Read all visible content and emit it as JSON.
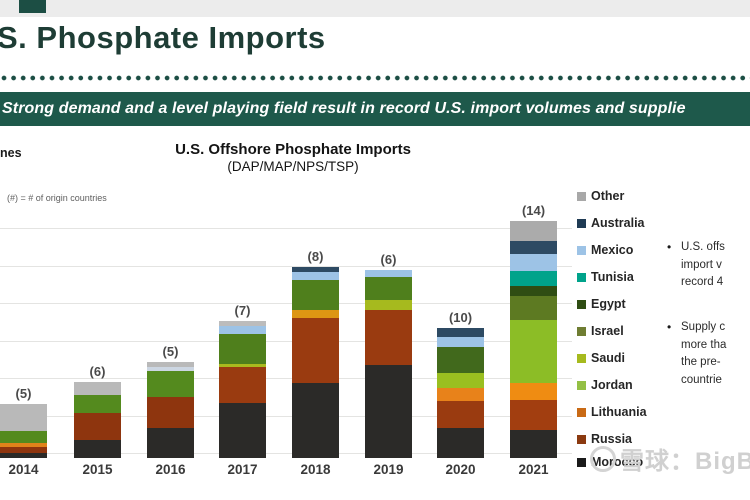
{
  "header": {
    "title": "S. Phosphate Imports",
    "banner_text": "Strong demand and a level playing field result in record U.S. import volumes and supplie",
    "colors": {
      "banner_bg": "#1e594b",
      "banner_text": "#ffffff",
      "title_text": "#1e3d35",
      "accent_green": "#1c4e44",
      "top_band": "#ececec"
    }
  },
  "chart": {
    "ylabel_fragment": "nes",
    "title": "U.S. Offshore Phosphate Imports",
    "subtitle": "(DAP/MAP/NPS/TSP)",
    "note": "(#) = # of origin countries"
  },
  "chart_data": {
    "type": "bar",
    "stacked": true,
    "title": "U.S. Offshore Phosphate Imports",
    "subtitle": "(DAP/MAP/NPS/TSP)",
    "categories": [
      "2014",
      "2015",
      "2016",
      "2017",
      "2018",
      "2019",
      "2020",
      "2021"
    ],
    "origin_count_labels": [
      "(5)",
      "(6)",
      "(5)",
      "(7)",
      "(8)",
      "(6)",
      "(10)",
      "(14)"
    ],
    "ylabel": "Tonnes (axis cropped; only 'nes' visible)",
    "values_unit": "thousand tonnes, estimated (y-axis tick labels cropped; one gridline ~ 500)",
    "ylim": [
      0,
      3400
    ],
    "grid": true,
    "legend_position": "right",
    "years": [
      {
        "year": "2014",
        "label": "(5)",
        "segments": [
          {
            "country": "Morocco",
            "kt": 70,
            "color": "#2b2a28"
          },
          {
            "country": "Russia",
            "kt": 80,
            "color": "#8e350e"
          },
          {
            "country": "Lithuania",
            "kt": 55,
            "color": "#e0831a"
          },
          {
            "country": "Jordan",
            "kt": 160,
            "color": "#548a1e"
          },
          {
            "country": "Other",
            "kt": 360,
            "color": "#b9b9b9"
          }
        ]
      },
      {
        "year": "2015",
        "label": "(6)",
        "segments": [
          {
            "country": "Morocco",
            "kt": 240,
            "color": "#2b2a28"
          },
          {
            "country": "Russia",
            "kt": 360,
            "color": "#8e350e"
          },
          {
            "country": "Jordan",
            "kt": 245,
            "color": "#548a1e"
          },
          {
            "country": "Other",
            "kt": 170,
            "color": "#b9b9b9"
          }
        ]
      },
      {
        "year": "2016",
        "label": "(5)",
        "segments": [
          {
            "country": "Morocco",
            "kt": 400,
            "color": "#2b2a28"
          },
          {
            "country": "Russia",
            "kt": 415,
            "color": "#8e350e"
          },
          {
            "country": "Jordan",
            "kt": 345,
            "color": "#548a1e"
          },
          {
            "country": "Mexico",
            "kt": 55,
            "color": "#ccd6e2"
          },
          {
            "country": "Other",
            "kt": 65,
            "color": "#b9b9b9"
          }
        ]
      },
      {
        "year": "2017",
        "label": "(7)",
        "segments": [
          {
            "country": "Morocco",
            "kt": 735,
            "color": "#2b2a28"
          },
          {
            "country": "Russia",
            "kt": 480,
            "color": "#9a3b10"
          },
          {
            "country": "Saudi",
            "kt": 40,
            "color": "#aab91e"
          },
          {
            "country": "Jordan",
            "kt": 400,
            "color": "#4f7f1c"
          },
          {
            "country": "Mexico",
            "kt": 110,
            "color": "#9dc3e6"
          },
          {
            "country": "Other",
            "kt": 65,
            "color": "#bcbcbc"
          }
        ]
      },
      {
        "year": "2018",
        "label": "(8)",
        "segments": [
          {
            "country": "Morocco",
            "kt": 1000,
            "color": "#2b2a28"
          },
          {
            "country": "Russia",
            "kt": 865,
            "color": "#9a3b10"
          },
          {
            "country": "Lithuania",
            "kt": 110,
            "color": "#dd9613"
          },
          {
            "country": "Jordan",
            "kt": 400,
            "color": "#4f7f1c"
          },
          {
            "country": "Mexico",
            "kt": 110,
            "color": "#9dc3e6"
          },
          {
            "country": "Australia",
            "kt": 65,
            "color": "#2d4a63"
          }
        ]
      },
      {
        "year": "2019",
        "label": "(6)",
        "segments": [
          {
            "country": "Morocco",
            "kt": 1240,
            "color": "#2b2a28"
          },
          {
            "country": "Russia",
            "kt": 735,
            "color": "#9a3b10"
          },
          {
            "country": "Saudi",
            "kt": 135,
            "color": "#a6ba1e"
          },
          {
            "country": "Jordan",
            "kt": 305,
            "color": "#4f7f1c"
          },
          {
            "country": "Mexico",
            "kt": 95,
            "color": "#9dc3e6"
          }
        ]
      },
      {
        "year": "2020",
        "label": "(10)",
        "segments": [
          {
            "country": "Morocco",
            "kt": 400,
            "color": "#2b2a28"
          },
          {
            "country": "Russia",
            "kt": 360,
            "color": "#9a3b10"
          },
          {
            "country": "Lithuania",
            "kt": 175,
            "color": "#e8821a"
          },
          {
            "country": "Saudi",
            "kt": 200,
            "color": "#9abf20"
          },
          {
            "country": "Israel",
            "kt": 345,
            "color": "#41691c"
          },
          {
            "country": "Mexico",
            "kt": 135,
            "color": "#9dc3e6"
          },
          {
            "country": "Australia",
            "kt": 120,
            "color": "#2d4a63"
          }
        ]
      },
      {
        "year": "2021",
        "label": "(14)",
        "segments": [
          {
            "country": "Morocco",
            "kt": 375,
            "color": "#2b2a28"
          },
          {
            "country": "Russia",
            "kt": 400,
            "color": "#a23e10"
          },
          {
            "country": "Lithuania",
            "kt": 225,
            "color": "#ef8c12"
          },
          {
            "country": "Jordan",
            "kt": 840,
            "color": "#8cbd26"
          },
          {
            "country": "Israel",
            "kt": 320,
            "color": "#5d7a22"
          },
          {
            "country": "Egypt",
            "kt": 135,
            "color": "#2f4d13"
          },
          {
            "country": "Tunisia",
            "kt": 200,
            "color": "#00a38b"
          },
          {
            "country": "Mexico",
            "kt": 225,
            "color": "#9dc3e6"
          },
          {
            "country": "Australia",
            "kt": 175,
            "color": "#2d4a63"
          },
          {
            "country": "Other",
            "kt": 265,
            "color": "#ababab"
          }
        ]
      }
    ]
  },
  "legend": {
    "items": [
      {
        "label": "Other",
        "color": "#a8a8a8"
      },
      {
        "label": "Australia",
        "color": "#1f3b54"
      },
      {
        "label": "Mexico",
        "color": "#9dc3e6"
      },
      {
        "label": "Tunisia",
        "color": "#00a38b"
      },
      {
        "label": "Egypt",
        "color": "#2f4d13"
      },
      {
        "label": "Israel",
        "color": "#6f7d32"
      },
      {
        "label": "Saudi",
        "color": "#a6ba1e"
      },
      {
        "label": "Jordan",
        "color": "#94c045"
      },
      {
        "label": "Lithuania",
        "color": "#c96a15"
      },
      {
        "label": "Russia",
        "color": "#8b3a10"
      },
      {
        "label": "Morocco",
        "color": "#1a1a1a"
      }
    ]
  },
  "bullets": [
    {
      "lines": [
        "U.S. offs",
        "import v",
        "record 4"
      ]
    },
    {
      "lines": [
        "Supply c",
        "more tha",
        "the pre-",
        "countrie"
      ]
    }
  ],
  "watermark": {
    "text": "雪球：BigB"
  }
}
